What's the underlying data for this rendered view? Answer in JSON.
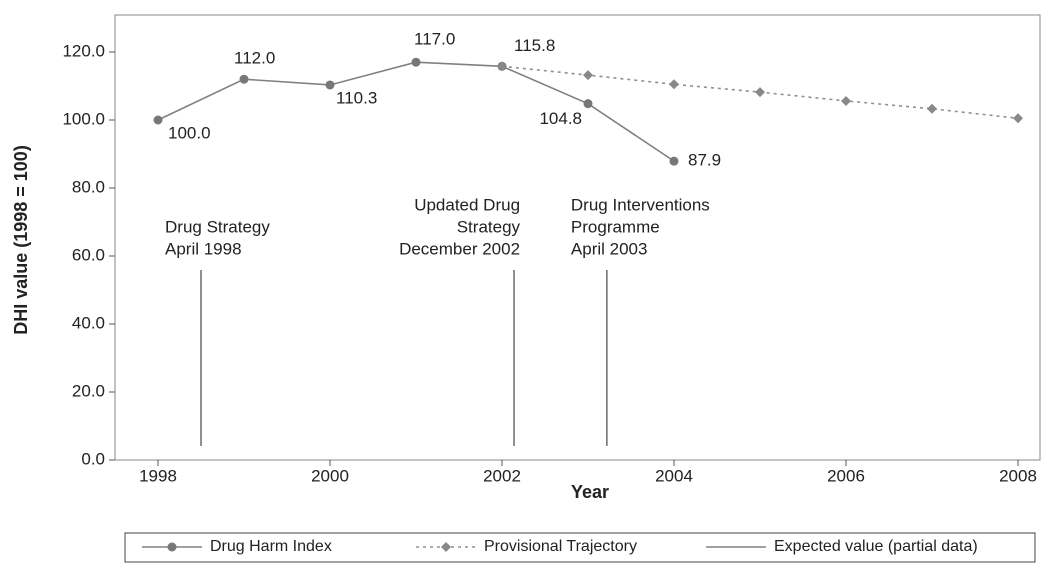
{
  "chart_data": {
    "type": "line",
    "x_label": "Year",
    "y_label": "DHI value (1998 = 100)",
    "x": [
      1998,
      1999,
      2000,
      2001,
      2002,
      2003,
      2004,
      2005,
      2006,
      2007,
      2008
    ],
    "xlim": [
      1997.5,
      2008.25
    ],
    "xticks": [
      1998,
      2000,
      2002,
      2004,
      2006,
      2008
    ],
    "ylim": [
      0,
      120
    ],
    "yticks": [
      {
        "value": 0,
        "label": "0.0"
      },
      {
        "value": 20,
        "label": "20.0"
      },
      {
        "value": 40,
        "label": "40.0"
      },
      {
        "value": 60,
        "label": "60.0"
      },
      {
        "value": 80,
        "label": "80.0"
      },
      {
        "value": 100,
        "label": "100.0"
      },
      {
        "value": 120,
        "label": "120.0"
      }
    ],
    "series": [
      {
        "name": "Drug Harm Index",
        "color": "#808080",
        "marker": "circle",
        "dash": "solid",
        "values": [
          100,
          112,
          110.3,
          117,
          115.8,
          104.8,
          87.9,
          null,
          null,
          null,
          null
        ],
        "value_labels": [
          "100.0",
          "112.0",
          "110.3",
          "117.0",
          "115.8",
          "104.8",
          "87.9",
          null,
          null,
          null,
          null
        ]
      },
      {
        "name": "Provisional Trajectory",
        "color": "#909090",
        "marker": "diamond",
        "dash": "dotted",
        "values": [
          null,
          null,
          null,
          null,
          115.8,
          113.2,
          110.5,
          108.2,
          105.6,
          103.3,
          100.5
        ]
      },
      {
        "name": "Expected value (partial data)",
        "color": "#808080",
        "marker": "none",
        "dash": "solid",
        "values": [
          null,
          null,
          null,
          null,
          null,
          null,
          null,
          null,
          null,
          null,
          null
        ]
      }
    ],
    "annotations": [
      {
        "x": 1998.5,
        "lines": [
          "Drug Strategy",
          "April 1998"
        ],
        "align": "left"
      },
      {
        "x": 2002.14,
        "lines": [
          "Updated Drug",
          "Strategy",
          "December 2002"
        ],
        "align": "right"
      },
      {
        "x": 2003.22,
        "lines": [
          "Drug Interventions",
          "Programme",
          "April 2003"
        ],
        "align": "left"
      }
    ]
  }
}
